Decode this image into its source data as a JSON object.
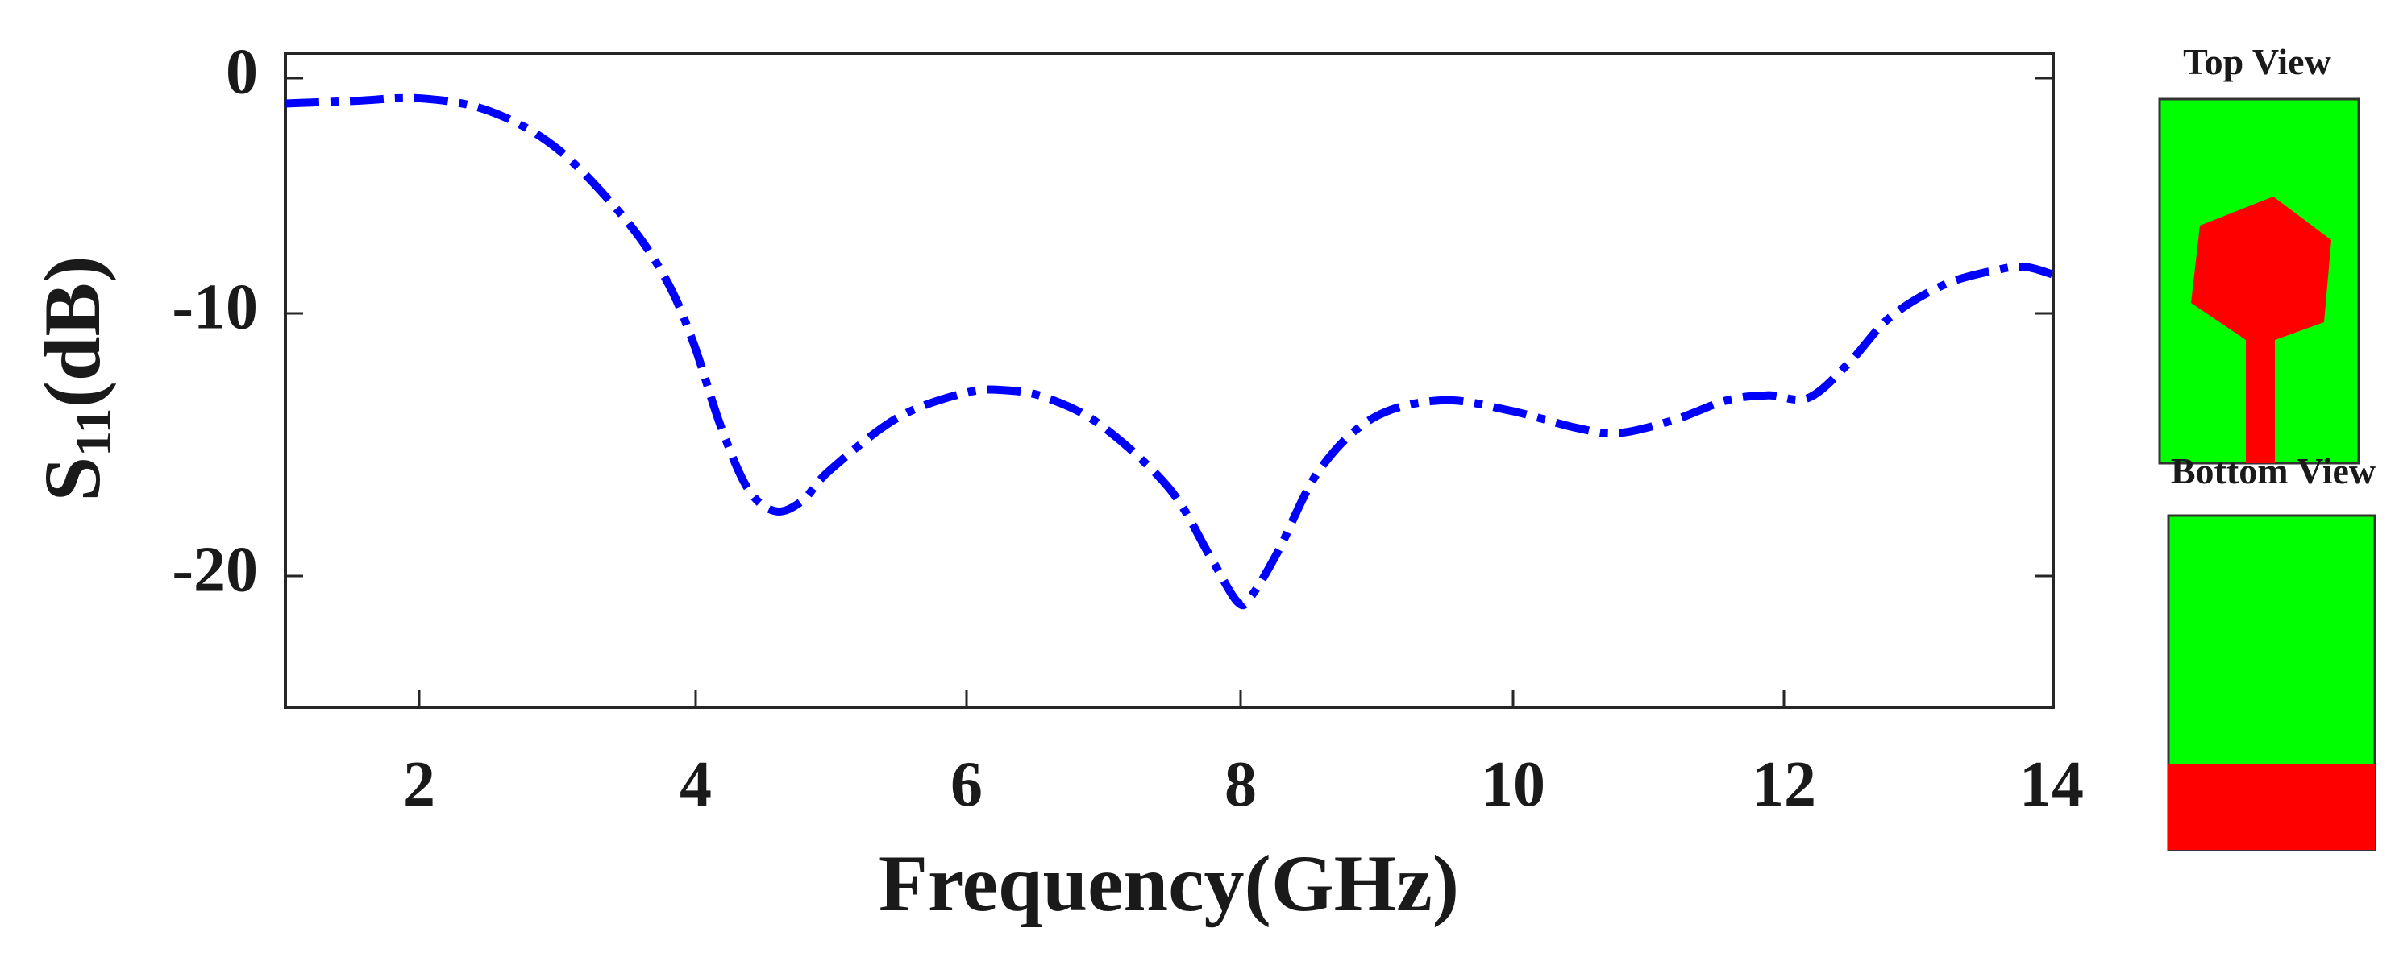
{
  "chart_data": {
    "type": "line",
    "xlabel": "Frequency(GHz)",
    "ylabel": {
      "main": "S",
      "sub": "11",
      "unit": "(dB)"
    },
    "xlim": [
      1,
      14
    ],
    "ylim": [
      -25,
      1
    ],
    "xticks": [
      2,
      4,
      6,
      8,
      10,
      12,
      14
    ],
    "yticks": [
      0,
      -10,
      -20
    ],
    "xtick_labels": [
      "2",
      "4",
      "6",
      "8",
      "10",
      "12",
      "14"
    ],
    "ytick_labels": [
      "0",
      "-10",
      "-20"
    ],
    "grid": false,
    "series": [
      {
        "color": "#0000ff",
        "line_style": "dash-dot",
        "x": [
          1.0,
          1.5,
          2.0,
          2.5,
          3.0,
          3.5,
          3.8,
          4.0,
          4.2,
          4.4,
          4.6,
          4.8,
          5.0,
          5.5,
          6.0,
          6.3,
          6.6,
          7.0,
          7.5,
          7.8,
          8.0,
          8.1,
          8.3,
          8.6,
          9.0,
          9.5,
          10.0,
          10.5,
          10.8,
          11.2,
          11.6,
          11.9,
          12.2,
          12.5,
          12.8,
          13.2,
          13.6,
          13.8,
          14.0
        ],
        "y": [
          -1.0,
          -0.9,
          -0.8,
          -1.3,
          -2.8,
          -5.6,
          -8.0,
          -10.5,
          -13.8,
          -16.3,
          -17.2,
          -16.8,
          -15.6,
          -13.5,
          -12.5,
          -12.4,
          -12.7,
          -13.8,
          -16.3,
          -19.0,
          -20.8,
          -20.6,
          -18.8,
          -15.6,
          -13.5,
          -12.8,
          -13.2,
          -13.9,
          -14.1,
          -13.6,
          -12.8,
          -12.6,
          -12.7,
          -11.3,
          -9.5,
          -8.2,
          -7.6,
          -7.5,
          -7.8
        ]
      }
    ]
  },
  "insets": {
    "top_view": {
      "label": "Top View",
      "substrate_color": "#00ff00",
      "patch_color": "#ff0000"
    },
    "bottom_view": {
      "label": "Bottom View",
      "substrate_color": "#00ff00",
      "ground_color": "#ff0000"
    }
  }
}
